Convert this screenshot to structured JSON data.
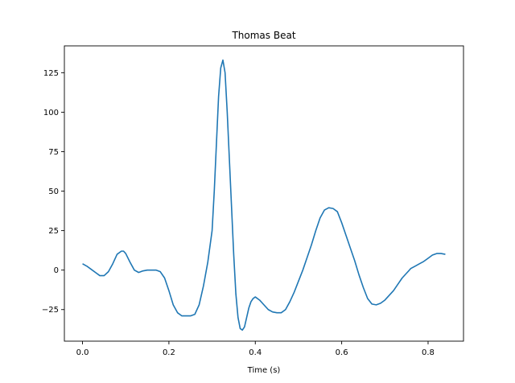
{
  "chart_data": {
    "type": "line",
    "title": "Thomas Beat",
    "xlabel": "Time (s)",
    "ylabel": "",
    "xlim": [
      -0.042,
      0.882
    ],
    "ylim": [
      -45,
      142
    ],
    "xticks": [
      0.0,
      0.2,
      0.4,
      0.6,
      0.8
    ],
    "xtick_labels": [
      "0.0",
      "0.2",
      "0.4",
      "0.6",
      "0.8"
    ],
    "yticks": [
      -25,
      0,
      25,
      50,
      75,
      100,
      125
    ],
    "ytick_labels": [
      "−25",
      "0",
      "25",
      "50",
      "75",
      "100",
      "125"
    ],
    "grid": false,
    "colors": {
      "line": "#1f77b4"
    },
    "series": [
      {
        "x": [
          0.0,
          0.01,
          0.02,
          0.03,
          0.04,
          0.05,
          0.06,
          0.07,
          0.08,
          0.09,
          0.095,
          0.1,
          0.11,
          0.12,
          0.13,
          0.14,
          0.15,
          0.16,
          0.17,
          0.18,
          0.19,
          0.2,
          0.21,
          0.22,
          0.23,
          0.24,
          0.25,
          0.26,
          0.27,
          0.28,
          0.29,
          0.3,
          0.305,
          0.31,
          0.315,
          0.32,
          0.325,
          0.33,
          0.335,
          0.34,
          0.345,
          0.35,
          0.355,
          0.36,
          0.365,
          0.37,
          0.375,
          0.38,
          0.385,
          0.39,
          0.395,
          0.4,
          0.41,
          0.42,
          0.43,
          0.44,
          0.45,
          0.46,
          0.47,
          0.48,
          0.49,
          0.5,
          0.51,
          0.52,
          0.53,
          0.54,
          0.55,
          0.56,
          0.57,
          0.58,
          0.59,
          0.6,
          0.61,
          0.62,
          0.63,
          0.64,
          0.65,
          0.66,
          0.67,
          0.68,
          0.69,
          0.7,
          0.71,
          0.72,
          0.73,
          0.74,
          0.75,
          0.76,
          0.77,
          0.78,
          0.79,
          0.8,
          0.81,
          0.82,
          0.83,
          0.84
        ],
        "y": [
          4,
          2.5,
          0.5,
          -1.5,
          -3.5,
          -3.5,
          -1,
          4,
          10,
          12,
          12,
          10.5,
          5,
          0,
          -1.5,
          -0.5,
          0,
          0,
          0,
          -1,
          -5,
          -13,
          -22,
          -27,
          -29,
          -29,
          -29,
          -28,
          -22,
          -10,
          5,
          25,
          50,
          80,
          110,
          128,
          133,
          125,
          100,
          70,
          40,
          10,
          -15,
          -30,
          -37,
          -38,
          -36,
          -30,
          -24,
          -20,
          -18,
          -17,
          -19,
          -22,
          -25,
          -26.5,
          -27,
          -27,
          -25,
          -20,
          -14,
          -7,
          0,
          8,
          16,
          25,
          33,
          38,
          39.5,
          39,
          37,
          30,
          22,
          14,
          6,
          -3,
          -11,
          -18,
          -21.5,
          -22,
          -21,
          -19,
          -16,
          -13,
          -9,
          -5,
          -2,
          1,
          2.5,
          4,
          5.5,
          7.5,
          9.5,
          10.5,
          10.5,
          10
        ]
      }
    ]
  }
}
